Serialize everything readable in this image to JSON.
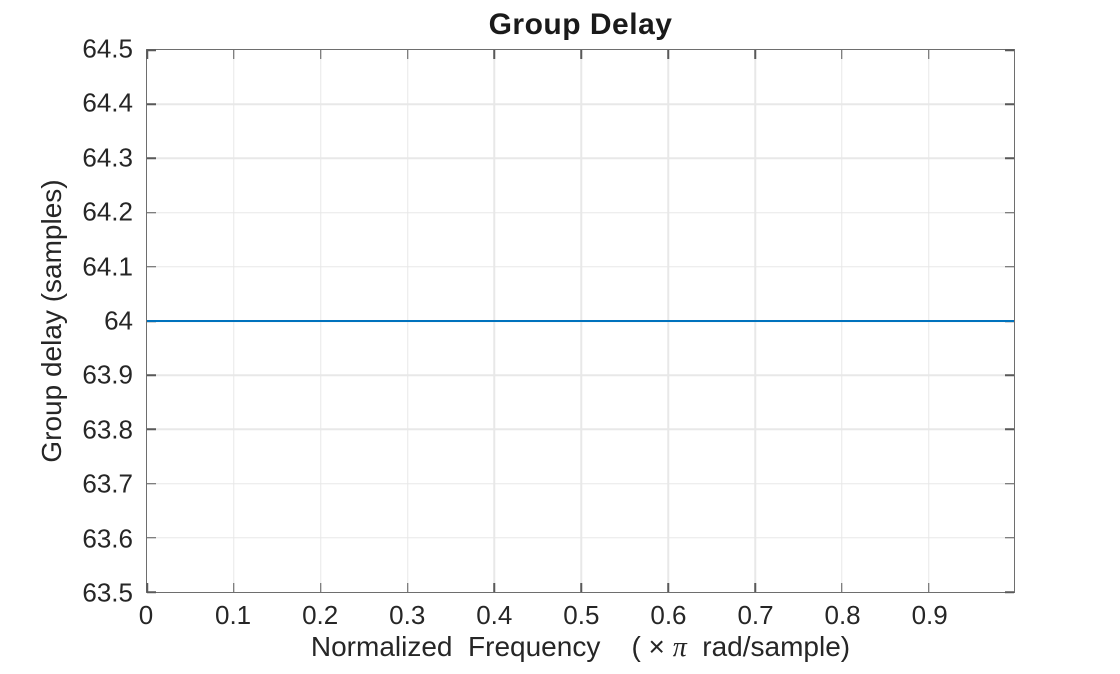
{
  "chart_data": {
    "type": "line",
    "title": "Group Delay",
    "xlabel": {
      "before": "Normalized  Frequency    ( × ",
      "pi": "π",
      "after": "  rad/sample)"
    },
    "ylabel": "Group delay (samples)",
    "xlim": [
      0,
      0.998
    ],
    "ylim": [
      63.5,
      64.5
    ],
    "xticks": [
      0,
      0.1,
      0.2,
      0.3,
      0.4,
      0.5,
      0.6,
      0.7,
      0.8,
      0.9
    ],
    "xtick_labels": [
      "0",
      "0.1",
      "0.2",
      "0.3",
      "0.4",
      "0.5",
      "0.6",
      "0.7",
      "0.8",
      "0.9"
    ],
    "yticks": [
      63.5,
      63.6,
      63.7,
      63.8,
      63.9,
      64,
      64.1,
      64.2,
      64.3,
      64.4,
      64.5
    ],
    "ytick_labels": [
      "63.5",
      "63.6",
      "63.7",
      "63.8",
      "63.9",
      "64",
      "64.1",
      "64.2",
      "64.3",
      "64.4",
      "64.5"
    ],
    "grid": true,
    "legend": "none",
    "series": [
      {
        "name": "group delay",
        "color": "#0072bd",
        "x": [
          0,
          0.998
        ],
        "y": [
          64,
          64
        ]
      }
    ]
  },
  "colors": {
    "line_blue": "#0072bd",
    "axis_box": "#6e6e6e",
    "tick_mark": "#595959",
    "gridline": "#e8e8e8",
    "label_text": "#262626",
    "title_text": "#1a1a1a",
    "background": "#ffffff"
  }
}
